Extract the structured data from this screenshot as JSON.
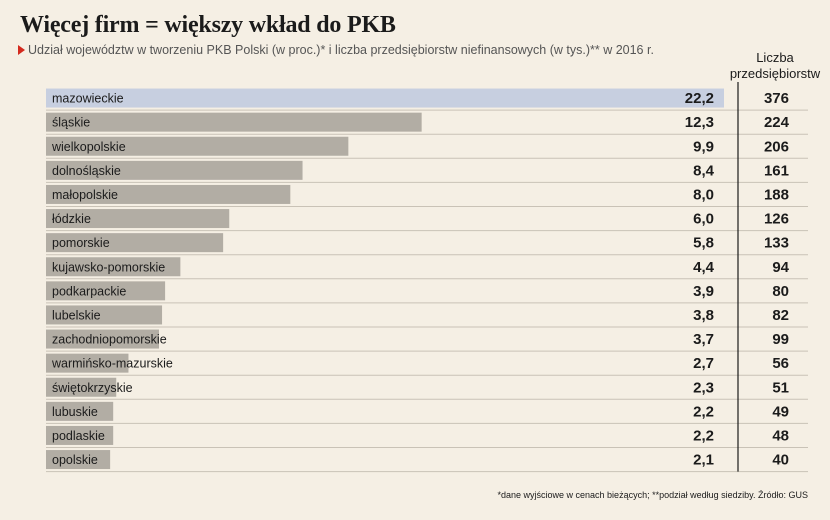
{
  "title": "Więcej firm = większy wkład do PKB",
  "subtitle": "Udział województw w tworzeniu PKB Polski  (w proc.)* i liczba przedsiębiorstw niefinansowych (w tys.)** w 2016 r.",
  "column_header": {
    "line1": "Liczba",
    "line2": "przedsiębiorstw"
  },
  "footnote": "*dane wyjściowe w cenach bieżących; **podział według siedziby. Źródło: GUS",
  "colors": {
    "highlight": "#c7cfe0",
    "bar": "#b2ada4",
    "divider": "#1b1b1b",
    "rowline": "#c9c2b6",
    "accent": "#d42a1e"
  },
  "chart_data": {
    "type": "bar",
    "orientation": "horizontal",
    "categories": [
      "mazowieckie",
      "śląskie",
      "wielkopolskie",
      "dolnośląskie",
      "małopolskie",
      "łódzkie",
      "pomorskie",
      "kujawsko-pomorskie",
      "podkarpackie",
      "lubelskie",
      "zachodniopomorskie",
      "warmińsko-mazurskie",
      "świętokrzyskie",
      "lubuskie",
      "podlaskie",
      "opolskie"
    ],
    "values": [
      22.2,
      12.3,
      9.9,
      8.4,
      8.0,
      6.0,
      5.8,
      4.4,
      3.9,
      3.8,
      3.7,
      2.7,
      2.3,
      2.2,
      2.2,
      2.1
    ],
    "value_labels": [
      "22,2",
      "12,3",
      "9,9",
      "8,4",
      "8,0",
      "6,0",
      "5,8",
      "4,4",
      "3,9",
      "3,8",
      "3,7",
      "2,7",
      "2,3",
      "2,2",
      "2,2",
      "2,1"
    ],
    "companies": [
      376,
      224,
      206,
      161,
      188,
      126,
      133,
      94,
      80,
      82,
      99,
      56,
      51,
      49,
      48,
      40
    ],
    "highlight_index": 0,
    "xlim": [
      0,
      22.2
    ]
  }
}
